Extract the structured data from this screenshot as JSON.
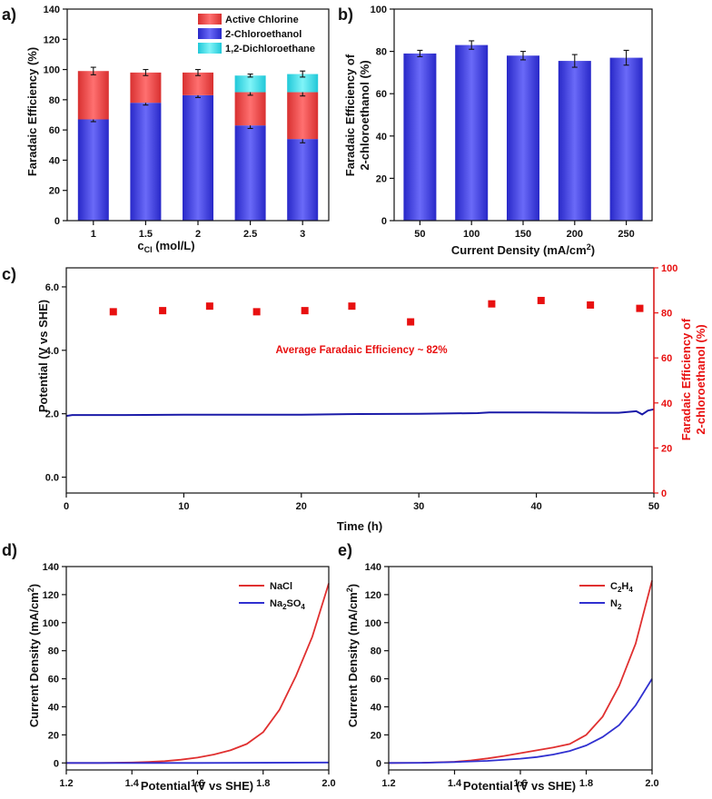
{
  "chart_data": [
    {
      "id": "a",
      "panel_label": "a)",
      "type": "bar",
      "stacked": true,
      "xlabel_main": "c",
      "xlabel_sub": "Cl",
      "xlabel_rest": " (mol/L)",
      "ylabel": "Faradaic Efficiency (%)",
      "categories": [
        "1",
        "1.5",
        "2",
        "2.5",
        "3"
      ],
      "yticks": [
        "0",
        "20",
        "40",
        "60",
        "80",
        "100",
        "120",
        "140"
      ],
      "ylim": [
        0,
        140
      ],
      "series": [
        {
          "name": "2-Chloroethanol",
          "color": "#3a3ae8",
          "values": [
            67,
            78,
            83,
            63,
            54
          ],
          "errors": [
            1.5,
            1.5,
            1.5,
            2,
            2.5
          ]
        },
        {
          "name": "Active Chlorine",
          "color": "#f04a4a",
          "values": [
            32,
            20,
            15,
            22,
            31
          ],
          "errors": [
            2.5,
            2,
            2,
            2,
            2.5
          ]
        },
        {
          "name": "1,2-Dichloroethane",
          "color": "#3fe0e8",
          "values": [
            0,
            0,
            0,
            11,
            12
          ],
          "errors": [
            0,
            0,
            0,
            1,
            2
          ]
        }
      ],
      "legend_order": [
        "Active Chlorine",
        "2-Chloroethanol",
        "1,2-Dichloroethane"
      ],
      "legend_position": "top-right"
    },
    {
      "id": "b",
      "panel_label": "b)",
      "type": "bar",
      "xlabel": "Current Density (mA/cm",
      "xlabel_sup": "2",
      "xlabel_end": ")",
      "ylabel_line1": "Faradaic Efficiency of",
      "ylabel_line2": "2-chloroethanol (%)",
      "categories": [
        "50",
        "100",
        "150",
        "200",
        "250"
      ],
      "yticks": [
        "0",
        "20",
        "40",
        "60",
        "80",
        "100"
      ],
      "ylim": [
        0,
        100
      ],
      "color": "#3a3ae8",
      "values": [
        79,
        83,
        78,
        75.5,
        77
      ],
      "errors": [
        1.5,
        2,
        2,
        3,
        3.5
      ]
    },
    {
      "id": "c",
      "panel_label": "c)",
      "type": "line+scatter",
      "xlabel": "Time (h)",
      "ylabel": "Potential (V vs SHE)",
      "ylabel_right_line1": "Faradaic Efficiency of",
      "ylabel_right_line2": "2-chloroethanol (%)",
      "xticks": [
        "0",
        "10",
        "20",
        "30",
        "40",
        "50"
      ],
      "xlim": [
        0,
        50
      ],
      "yticks": [
        "0.0",
        "2.0",
        "4.0",
        "6.0"
      ],
      "ylim": [
        -0.5,
        6.6
      ],
      "yticks_right": [
        "0",
        "20",
        "40",
        "60",
        "80",
        "100"
      ],
      "ylim_right": [
        0,
        100
      ],
      "line_color": "#1a1aa8",
      "potential": {
        "x": [
          0,
          0.5,
          5,
          10,
          15,
          20,
          25,
          30,
          35,
          36,
          40,
          45,
          47,
          48.5,
          49,
          49.5,
          50
        ],
        "y": [
          1.93,
          1.96,
          1.96,
          1.97,
          1.97,
          1.97,
          1.99,
          2.0,
          2.02,
          2.04,
          2.04,
          2.03,
          2.03,
          2.08,
          1.98,
          2.1,
          2.14
        ]
      },
      "scatter_color": "#e81010",
      "fe_points": {
        "x": [
          4,
          8.2,
          12.2,
          16.2,
          20.3,
          24.3,
          29.3,
          36.2,
          40.4,
          44.6,
          48.8
        ],
        "y": [
          80.5,
          81,
          83,
          80.5,
          81,
          83,
          76,
          84,
          85.5,
          83.5,
          82
        ]
      },
      "annotation": "Average Faradaic Efficiency ~ 82%"
    },
    {
      "id": "d",
      "panel_label": "d)",
      "type": "line",
      "xlabel": "Potential (V vs SHE)",
      "ylabel": "Current  Density (mA/cm",
      "ylabel_sup": "2",
      "ylabel_end": ")",
      "xticks": [
        "1.2",
        "1.4",
        "1.6",
        "1.8",
        "2.0"
      ],
      "xlim": [
        1.2,
        2.0
      ],
      "yticks": [
        "0",
        "20",
        "40",
        "60",
        "80",
        "100",
        "120",
        "140"
      ],
      "ylim": [
        -5,
        140
      ],
      "series": [
        {
          "name": "NaCl",
          "color": "#e03030",
          "x": [
            1.2,
            1.3,
            1.4,
            1.45,
            1.5,
            1.55,
            1.6,
            1.65,
            1.7,
            1.75,
            1.8,
            1.85,
            1.9,
            1.95,
            2.0
          ],
          "y": [
            0,
            0,
            0.3,
            0.7,
            1.3,
            2.3,
            3.8,
            6.0,
            9.0,
            13.5,
            22,
            38,
            62,
            90,
            128
          ]
        },
        {
          "name": "Na2SO4",
          "color": "#3030d0",
          "x": [
            1.2,
            1.6,
            2.0
          ],
          "y": [
            0,
            0,
            0.3
          ]
        }
      ],
      "legend": [
        {
          "base": "NaCl",
          "sub": "",
          "tail": ""
        },
        {
          "base": "Na",
          "sub": "2",
          "tail": "SO",
          "sub2": "4"
        }
      ]
    },
    {
      "id": "e",
      "panel_label": "e)",
      "type": "line",
      "xlabel": "Potential (V vs SHE)",
      "ylabel": "Current  Density (mA/cm",
      "ylabel_sup": "2",
      "ylabel_end": ")",
      "xticks": [
        "1.2",
        "1.4",
        "1.6",
        "1.8",
        "2.0"
      ],
      "xlim": [
        1.2,
        2.0
      ],
      "yticks": [
        "0",
        "20",
        "40",
        "60",
        "80",
        "100",
        "120",
        "140"
      ],
      "ylim": [
        -5,
        140
      ],
      "series": [
        {
          "name": "C2H4",
          "color": "#e03030",
          "x": [
            1.2,
            1.3,
            1.4,
            1.45,
            1.5,
            1.55,
            1.6,
            1.65,
            1.7,
            1.75,
            1.8,
            1.85,
            1.9,
            1.95,
            2.0
          ],
          "y": [
            0,
            0.1,
            0.8,
            1.8,
            3.2,
            5.0,
            7.0,
            9.0,
            11.0,
            13.5,
            20,
            33,
            55,
            85,
            130
          ]
        },
        {
          "name": "N2",
          "color": "#3030d0",
          "x": [
            1.2,
            1.3,
            1.4,
            1.5,
            1.6,
            1.65,
            1.7,
            1.75,
            1.8,
            1.85,
            1.9,
            1.95,
            2.0
          ],
          "y": [
            0,
            0.1,
            0.6,
            1.5,
            3.0,
            4.2,
            6.0,
            8.5,
            12.5,
            18.5,
            27,
            41,
            60
          ]
        }
      ],
      "legend": [
        {
          "base": "C",
          "sub": "2",
          "tail": "H",
          "sub2": "4"
        },
        {
          "base": "N",
          "sub": "2",
          "tail": ""
        }
      ]
    }
  ]
}
